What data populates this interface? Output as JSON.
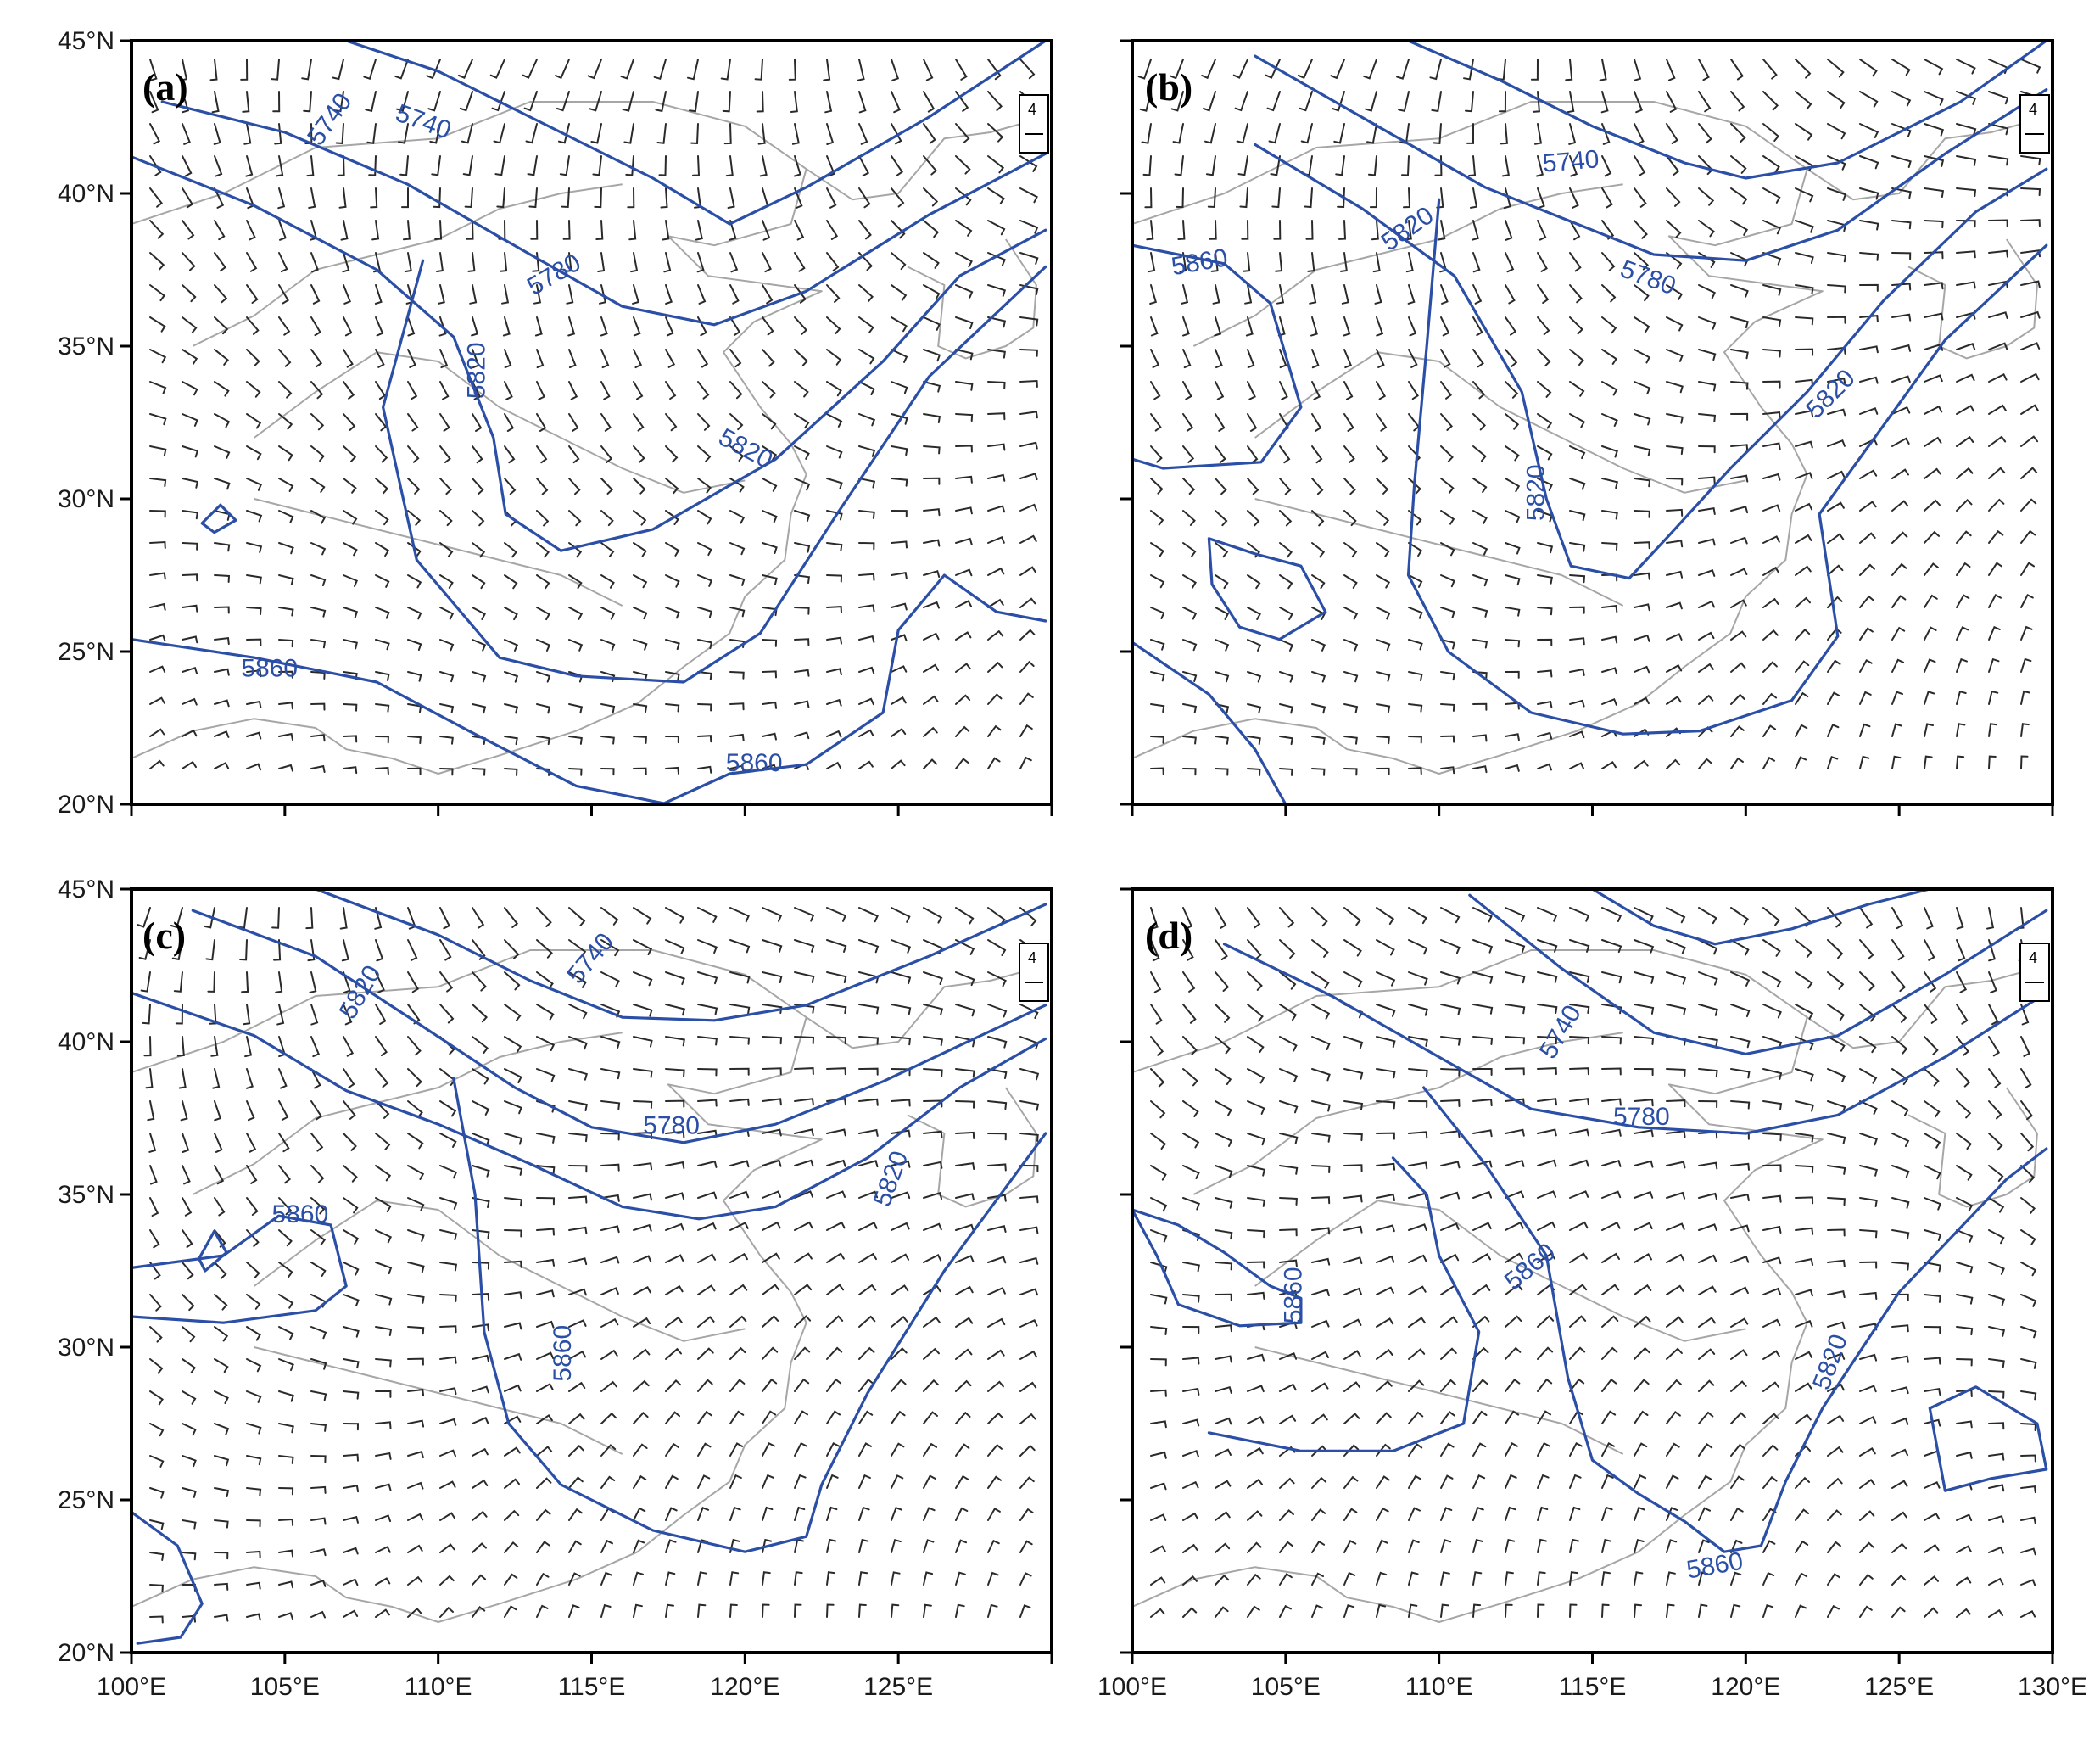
{
  "figure": {
    "x_ticks": [
      "100°E",
      "105°E",
      "110°E",
      "115°E",
      "120°E",
      "125°E",
      "130°E"
    ],
    "y_ticks": [
      "45°N",
      "40°N",
      "35°N",
      "30°N",
      "25°N",
      "20°N"
    ],
    "contour_color": "#2b4fa6",
    "coast_color": "#a6a6a6",
    "barb_color": "#2a2a2a",
    "reference_vector_label": "4"
  },
  "panels": [
    {
      "label": "(a)",
      "contours": [
        {
          "value": "5740",
          "labels": [
            "5740",
            "5740"
          ]
        },
        {
          "value": "5780",
          "labels": [
            "5780"
          ]
        },
        {
          "value": "5820",
          "labels": [
            "5820",
            "5820"
          ]
        },
        {
          "value": "5860",
          "labels": [
            "5860",
            "5860",
            "5860"
          ]
        }
      ]
    },
    {
      "label": "(b)",
      "contours": [
        {
          "value": "5740",
          "labels": [
            "5740"
          ]
        },
        {
          "value": "5780",
          "labels": [
            "5780"
          ]
        },
        {
          "value": "5820",
          "labels": [
            "5820",
            "5820"
          ]
        },
        {
          "value": "5860",
          "labels": [
            "5860",
            "5860"
          ]
        }
      ]
    },
    {
      "label": "(c)",
      "contours": [
        {
          "value": "5740",
          "labels": [
            "5740"
          ]
        },
        {
          "value": "5780",
          "labels": [
            "5780"
          ]
        },
        {
          "value": "5820",
          "labels": [
            "5820",
            "5820"
          ]
        },
        {
          "value": "5860",
          "labels": [
            "5860",
            "5860"
          ]
        }
      ]
    },
    {
      "label": "(d)",
      "contours": [
        {
          "value": "5740",
          "labels": [
            "5740"
          ]
        },
        {
          "value": "5780",
          "labels": [
            "5780"
          ]
        },
        {
          "value": "5820",
          "labels": [
            "5820"
          ]
        },
        {
          "value": "5860",
          "labels": [
            "5860",
            "5860",
            "5860"
          ]
        }
      ]
    }
  ]
}
